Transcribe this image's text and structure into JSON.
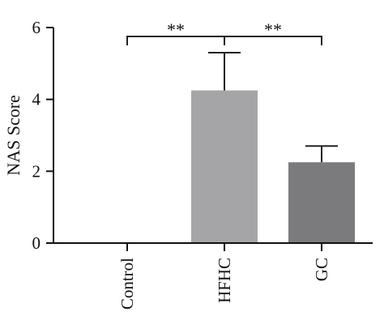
{
  "chart_data": {
    "type": "bar",
    "title": "",
    "xlabel": "",
    "ylabel": "NAS Score",
    "ylim": [
      0,
      6
    ],
    "yticks": [
      0,
      2,
      4,
      6
    ],
    "categories": [
      "Control",
      "HFHC",
      "GC"
    ],
    "values": [
      0,
      4.25,
      2.25
    ],
    "errors": [
      0,
      1.05,
      0.45
    ],
    "bar_colors": [
      "#a5a5a8",
      "#a5a5a8",
      "#7b7b7d"
    ],
    "significance": [
      {
        "from": 0,
        "to": 1,
        "label": "**"
      },
      {
        "from": 1,
        "to": 2,
        "label": "**"
      }
    ],
    "grid": false,
    "legend": "none"
  }
}
